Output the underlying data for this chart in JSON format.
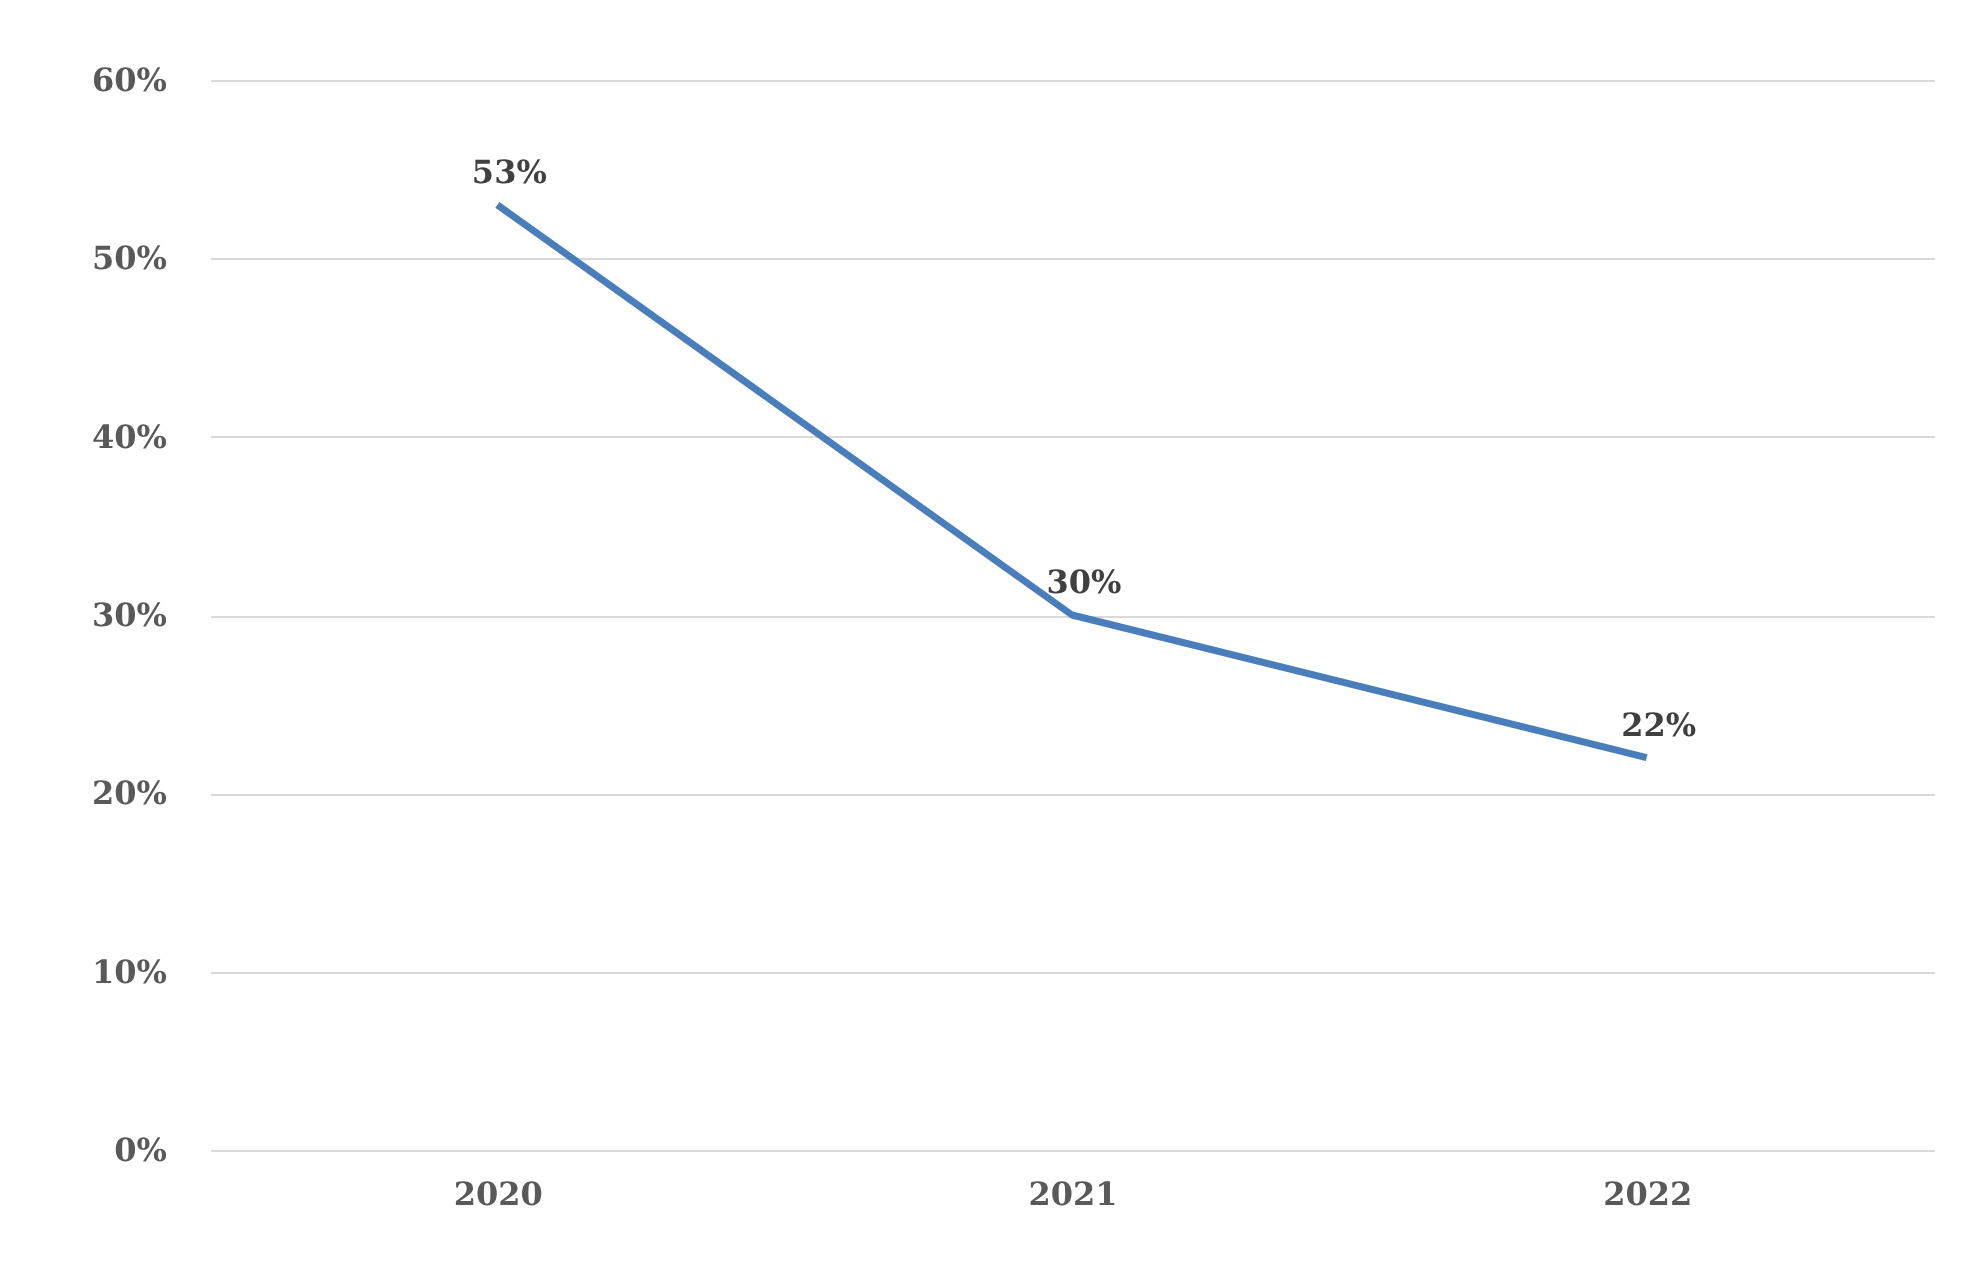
{
  "chart_data": {
    "type": "line",
    "categories": [
      "2020",
      "2021",
      "2022"
    ],
    "series": [
      {
        "color": "#4a7ebb",
        "values": [
          53,
          30,
          22
        ],
        "value_labels": [
          "53%",
          "30%",
          "22%"
        ]
      }
    ],
    "ylim": [
      0,
      60
    ],
    "yticks": [
      {
        "value": 0,
        "label": "0%"
      },
      {
        "value": 10,
        "label": "10%"
      },
      {
        "value": 20,
        "label": "20%"
      },
      {
        "value": 30,
        "label": "30%"
      },
      {
        "value": 40,
        "label": "40%"
      },
      {
        "value": 50,
        "label": "50%"
      },
      {
        "value": 60,
        "label": "60%"
      }
    ],
    "grid": "y",
    "marker": "none",
    "line_style": "solid"
  }
}
